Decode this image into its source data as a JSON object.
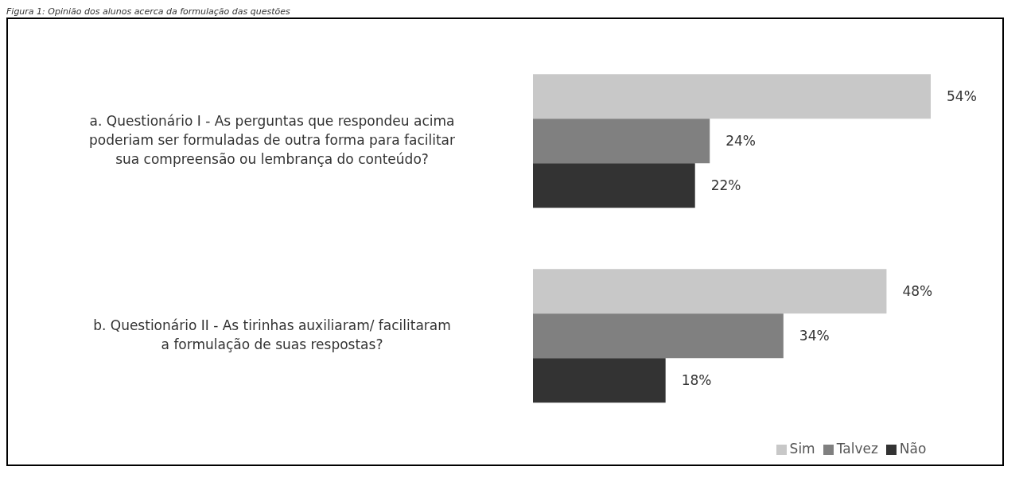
{
  "chart_data": {
    "type": "bar",
    "orientation": "horizontal",
    "title": "Figura 1: Opinião dos alunos acerca da formulação das questões",
    "categories": [
      "a. Questionário I - As perguntas que respondeu acima poderiam ser formuladas de outra forma para facilitar sua compreensão ou lembrança do conteúdo?",
      "b. Questionário II - As tirinhas auxiliaram/ facilitaram a formulação de suas respostas?"
    ],
    "series": [
      {
        "name": "Sim",
        "color": "#c8c8c8",
        "values": [
          54,
          48
        ],
        "value_labels": [
          "54%",
          "48%"
        ]
      },
      {
        "name": "Talvez",
        "color": "#808080",
        "values": [
          24,
          34
        ],
        "value_labels": [
          "24%",
          "34%"
        ]
      },
      {
        "name": "Não",
        "color": "#333333",
        "values": [
          22,
          18
        ],
        "value_labels": [
          "22%",
          "18%"
        ]
      }
    ],
    "legend": "bottom",
    "grid": false
  }
}
